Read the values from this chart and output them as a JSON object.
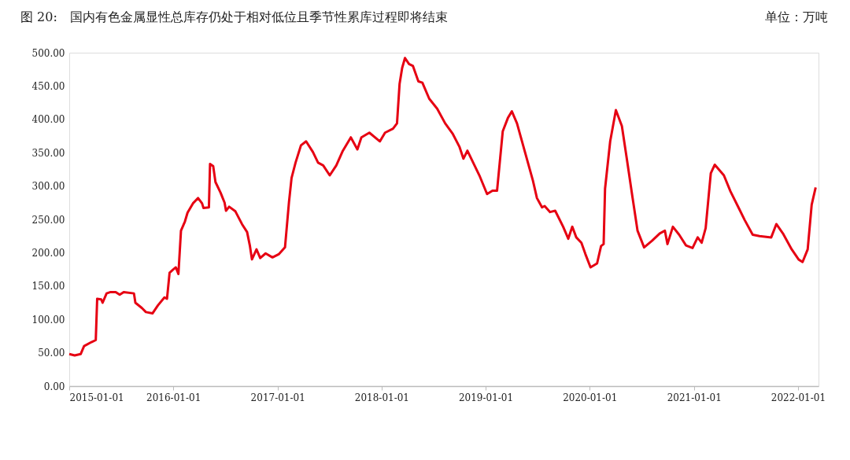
{
  "chart_data": {
    "type": "line",
    "title": "图 20:　国内有色金属显性总库存仍处于相对低位且季节性累库过程即将结束",
    "ylabel": "单位：万吨",
    "x": [
      "2015-01-01",
      "2015-01-20",
      "2015-02-10",
      "2015-02-22",
      "2015-03-20",
      "2015-04-04",
      "2015-04-09",
      "2015-04-23",
      "2015-04-28",
      "2015-05-12",
      "2015-05-26",
      "2015-06-13",
      "2015-06-27",
      "2015-07-11",
      "2015-08-16",
      "2015-08-21",
      "2015-09-13",
      "2015-09-27",
      "2015-10-20",
      "2015-11-08",
      "2015-12-01",
      "2015-12-10",
      "2015-12-19",
      "2016-01-01",
      "2016-01-10",
      "2016-01-19",
      "2016-01-28",
      "2016-02-11",
      "2016-02-20",
      "2016-03-10",
      "2016-03-28",
      "2016-04-11",
      "2016-04-16",
      "2016-05-05",
      "2016-05-09",
      "2016-05-20",
      "2016-05-28",
      "2016-06-15",
      "2016-06-29",
      "2016-07-04",
      "2016-07-15",
      "2016-08-06",
      "2016-08-29",
      "2016-09-16",
      "2016-09-26",
      "2016-10-03",
      "2016-10-19",
      "2016-11-01",
      "2016-11-20",
      "2016-12-14",
      "2017-01-06",
      "2017-01-27",
      "2017-02-10",
      "2017-02-19",
      "2017-03-05",
      "2017-03-24",
      "2017-04-11",
      "2017-05-05",
      "2017-05-23",
      "2017-06-10",
      "2017-07-03",
      "2017-07-26",
      "2017-08-18",
      "2017-09-15",
      "2017-10-08",
      "2017-10-22",
      "2017-11-19",
      "2017-12-26",
      "2018-01-13",
      "2018-02-10",
      "2018-02-24",
      "2018-03-05",
      "2018-03-14",
      "2018-03-24",
      "2018-04-07",
      "2018-04-21",
      "2018-05-10",
      "2018-05-24",
      "2018-06-17",
      "2018-07-15",
      "2018-08-12",
      "2018-09-08",
      "2018-10-01",
      "2018-10-15",
      "2018-10-29",
      "2018-12-10",
      "2019-01-06",
      "2019-01-25",
      "2019-02-10",
      "2019-03-02",
      "2019-03-20",
      "2019-04-03",
      "2019-04-21",
      "2019-05-19",
      "2019-06-16",
      "2019-06-30",
      "2019-07-18",
      "2019-07-27",
      "2019-08-15",
      "2019-09-02",
      "2019-09-30",
      "2019-10-18",
      "2019-11-01",
      "2019-11-15",
      "2019-12-03",
      "2019-12-17",
      "2020-01-04",
      "2020-01-27",
      "2020-02-10",
      "2020-02-19",
      "2020-02-24",
      "2020-03-13",
      "2020-04-02",
      "2020-04-23",
      "2020-05-11",
      "2020-05-30",
      "2020-06-17",
      "2020-07-10",
      "2020-08-07",
      "2020-09-03",
      "2020-09-21",
      "2020-09-30",
      "2020-10-19",
      "2020-11-10",
      "2020-12-04",
      "2020-12-27",
      "2021-01-14",
      "2021-01-28",
      "2021-02-11",
      "2021-03-01",
      "2021-03-15",
      "2021-04-16",
      "2021-05-09",
      "2021-06-06",
      "2021-06-28",
      "2021-07-26",
      "2021-08-19",
      "2021-09-29",
      "2021-10-17",
      "2021-11-09",
      "2021-12-10",
      "2022-01-03",
      "2022-01-17",
      "2022-02-04",
      "2022-02-18",
      "2022-03-04"
    ],
    "series": [
      {
        "color": "#e60012",
        "values": [
          48,
          46,
          48,
          60,
          66,
          69,
          131,
          130,
          125,
          139,
          141,
          141,
          137,
          141,
          139,
          125,
          117,
          111,
          109,
          121,
          133,
          131,
          170,
          175,
          178,
          168,
          233,
          247,
          260,
          274,
          282,
          274,
          267,
          268,
          333,
          330,
          306,
          290,
          275,
          263,
          269,
          262,
          243,
          231,
          210,
          190,
          205,
          192,
          199,
          193,
          198,
          208,
          276,
          312,
          335,
          361,
          367,
          351,
          335,
          331,
          316,
          331,
          353,
          373,
          355,
          373,
          380,
          367,
          380,
          386,
          394,
          453,
          477,
          492,
          483,
          480,
          457,
          455,
          431,
          416,
          394,
          378,
          359,
          341,
          353,
          316,
          288,
          293,
          293,
          382,
          402,
          412,
          394,
          351,
          308,
          282,
          268,
          270,
          261,
          263,
          239,
          221,
          239,
          223,
          215,
          198,
          178,
          184,
          210,
          213,
          296,
          367,
          414,
          390,
          339,
          284,
          233,
          208,
          218,
          229,
          233,
          213,
          239,
          227,
          211,
          207,
          223,
          215,
          237,
          319,
          332,
          316,
          292,
          268,
          249,
          227,
          225,
          223,
          243,
          229,
          205,
          190,
          186,
          205,
          272,
          298
        ]
      }
    ],
    "xlim": [
      "2015-01-01",
      "2022-03-14"
    ],
    "xticks": [
      "2015-01-01",
      "2016-01-01",
      "2017-01-01",
      "2018-01-01",
      "2019-01-01",
      "2020-01-01",
      "2021-01-01",
      "2022-01-01"
    ],
    "ylim": [
      0,
      500
    ],
    "yticks": [
      {
        "value": 0,
        "label": "0.00"
      },
      {
        "value": 50,
        "label": "50.00"
      },
      {
        "value": 100,
        "label": "100.00"
      },
      {
        "value": 150,
        "label": "150.00"
      },
      {
        "value": 200,
        "label": "200.00"
      },
      {
        "value": 250,
        "label": "250.00"
      },
      {
        "value": 300,
        "label": "300.00"
      },
      {
        "value": 350,
        "label": "350.00"
      },
      {
        "value": 400,
        "label": "400.00"
      },
      {
        "value": 450,
        "label": "450.00"
      },
      {
        "value": 500,
        "label": "500.00"
      }
    ],
    "grid": false,
    "marker": "none",
    "line_style": "solid"
  }
}
